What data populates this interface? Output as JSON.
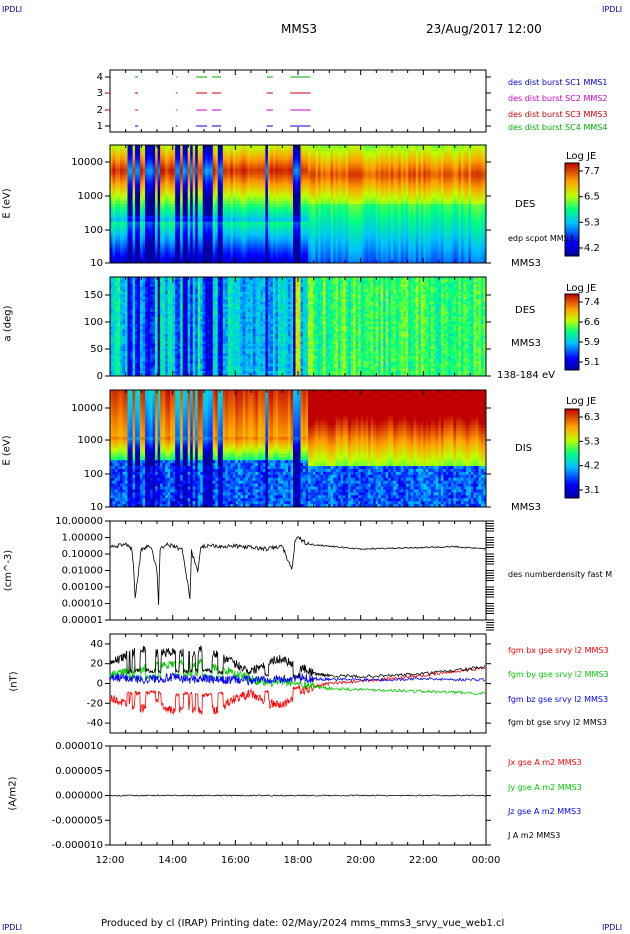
{
  "corner_labels": {
    "top_left": "IPDLI",
    "top_right": "IPDLI",
    "bottom_left": "IPDLI",
    "bottom_right": "IPDLI"
  },
  "header": {
    "spacecraft": "MMS3",
    "datetime": "23/Aug/2017 12:00"
  },
  "footer": {
    "text": "Produced by cl (IRAP)   Printing date: 02/May/2024   mms_mms3_srvy_vue_web1.cl"
  },
  "time_axis": {
    "labels": [
      "12:00",
      "14:00",
      "16:00",
      "18:00",
      "20:00",
      "22:00",
      "00:00"
    ]
  },
  "colors": {
    "red": "#ff0000",
    "green": "#00cc00",
    "blue": "#0000ff",
    "black": "#000000",
    "magenta": "#cc00cc"
  },
  "panels": {
    "burst": {
      "ticks": [
        "4",
        "3",
        "2",
        "1"
      ],
      "legend": [
        {
          "text": "des dist burst SC1 MMS1",
          "color": "#0000cc"
        },
        {
          "text": "des dist burst SC2 MMS2",
          "color": "#cc00cc"
        },
        {
          "text": "des dist burst SC3 MMS3",
          "color": "#cc0000"
        },
        {
          "text": "des dist burst SC4 MMS4",
          "color": "#00aa00"
        }
      ]
    },
    "des_energy": {
      "ylabel": "E (eV)",
      "ticks": [
        "10000",
        "1000",
        "100",
        "10"
      ],
      "label": "DES",
      "sc": "MMS3",
      "extra": "edp scpot MMS3",
      "cbar_title": "Log JE",
      "cbar_ticks": [
        "7.7",
        "6.5",
        "5.3",
        "4.2"
      ]
    },
    "des_pitch": {
      "ylabel": "a (deg)",
      "ticks": [
        "150",
        "100",
        "50",
        "0"
      ],
      "label": "DES",
      "sc": "MMS3",
      "energy_range": "138-184 eV",
      "cbar_title": "Log JE",
      "cbar_ticks": [
        "7.4",
        "6.6",
        "5.9",
        "5.1"
      ]
    },
    "dis_energy": {
      "ylabel": "E (eV)",
      "ticks": [
        "10000",
        "1000",
        "100",
        "10"
      ],
      "label": "DIS",
      "sc": "MMS3",
      "cbar_title": "Log JE",
      "cbar_ticks": [
        "6.3",
        "5.3",
        "4.2",
        "3.1"
      ]
    },
    "density": {
      "ylabel": "(cm^-3)",
      "ticks": [
        "10.00000",
        "1.00000",
        "0.10000",
        "0.01000",
        "0.00100",
        "0.00010",
        "0.00001"
      ],
      "legend": "des numberdensity fast M"
    },
    "bfield": {
      "ylabel": "(nT)",
      "ticks": [
        "40",
        "20",
        "0",
        "-20",
        "-40"
      ],
      "legend": [
        {
          "text": "fgm bx gse srvy l2 MMS3",
          "color": "#ff0000"
        },
        {
          "text": "fgm by gse srvy l2 MMS3",
          "color": "#00cc00"
        },
        {
          "text": "fgm bz gse srvy l2 MMS3",
          "color": "#0000ff"
        },
        {
          "text": "fgm bt gse srvy l2 MMS3",
          "color": "#000000"
        }
      ]
    },
    "current": {
      "ylabel": "(A/m2)",
      "ticks": [
        "0.000010",
        "0.000005",
        "0.000000",
        "-0.000005",
        "-0.000010"
      ],
      "legend": [
        {
          "text": "Jx gse A m2 MMS3",
          "color": "#ff0000"
        },
        {
          "text": "Jy gse A m2 MMS3",
          "color": "#00cc00"
        },
        {
          "text": "Jz gse A m2 MMS3",
          "color": "#0000ff"
        },
        {
          "text": "J A m2 MMS3",
          "color": "#000000"
        }
      ]
    }
  },
  "chart_data": [
    {
      "type": "scatter",
      "title": "",
      "ylabel": "",
      "ylim": [
        0.5,
        4.5
      ],
      "series": [
        {
          "name": "des dist burst SC1 MMS1",
          "y": 1,
          "intervals": [
            [
              12.8,
              12.9
            ],
            [
              14.1,
              14.15
            ],
            [
              14.75,
              15.1
            ],
            [
              15.25,
              15.55
            ],
            [
              17.0,
              17.2
            ],
            [
              17.75,
              18.4
            ]
          ]
        },
        {
          "name": "des dist burst SC2 MMS2",
          "y": 2,
          "intervals": [
            [
              12.8,
              12.9
            ],
            [
              14.1,
              14.15
            ],
            [
              14.75,
              15.1
            ],
            [
              15.25,
              15.55
            ],
            [
              17.0,
              17.2
            ],
            [
              17.75,
              18.4
            ]
          ]
        },
        {
          "name": "des dist burst SC3 MMS3",
          "y": 3,
          "intervals": [
            [
              12.8,
              12.9
            ],
            [
              14.1,
              14.15
            ],
            [
              14.75,
              15.1
            ],
            [
              15.25,
              15.55
            ],
            [
              17.0,
              17.2
            ],
            [
              17.75,
              18.4
            ]
          ]
        },
        {
          "name": "des dist burst SC4 MMS4",
          "y": 4,
          "intervals": [
            [
              12.8,
              12.9
            ],
            [
              14.1,
              14.15
            ],
            [
              14.75,
              15.1
            ],
            [
              15.25,
              15.55
            ],
            [
              17.0,
              17.2
            ],
            [
              17.75,
              18.4
            ]
          ]
        }
      ]
    },
    {
      "type": "heatmap",
      "ylabel": "E (eV)",
      "ylim": [
        10,
        30000
      ],
      "log_y": true,
      "colorbar": {
        "title": "Log JE",
        "range": [
          4.2,
          7.7
        ]
      }
    },
    {
      "type": "heatmap",
      "ylabel": "a (deg)",
      "ylim": [
        0,
        180
      ],
      "colorbar": {
        "title": "Log JE",
        "range": [
          5.1,
          7.4
        ]
      }
    },
    {
      "type": "heatmap",
      "ylabel": "E (eV)",
      "ylim": [
        10,
        30000
      ],
      "log_y": true,
      "colorbar": {
        "title": "Log JE",
        "range": [
          3.1,
          6.3
        ]
      }
    },
    {
      "type": "line",
      "ylabel": "(cm^-3)",
      "ylim": [
        1e-05,
        10
      ],
      "log_y": true,
      "series": [
        {
          "name": "des numberdensity fast M",
          "x": [
            12.0,
            12.5,
            12.7,
            12.75,
            12.8,
            13.0,
            13.3,
            13.5,
            13.55,
            13.6,
            13.8,
            14.0,
            14.3,
            14.5,
            14.55,
            14.6,
            14.8,
            14.9,
            15.0,
            15.2,
            15.5,
            16.0,
            16.5,
            17.0,
            17.5,
            17.8,
            17.9,
            18.0,
            18.3,
            19.0,
            20.0,
            21.0,
            22.0,
            23.0,
            24.0
          ],
          "y": [
            0.3,
            0.35,
            0.2,
            0.02,
            0.0002,
            0.2,
            0.3,
            0.01,
            0.0001,
            0.2,
            0.4,
            0.3,
            0.2,
            0.001,
            0.0002,
            0.15,
            0.01,
            0.2,
            0.3,
            0.35,
            0.3,
            0.3,
            0.25,
            0.2,
            0.3,
            0.01,
            0.5,
            1.0,
            0.4,
            0.3,
            0.2,
            0.22,
            0.25,
            0.28,
            0.2
          ]
        }
      ]
    },
    {
      "type": "line",
      "ylabel": "(nT)",
      "ylim": [
        -50,
        50
      ],
      "series": [
        {
          "name": "fgm bx gse srvy l2 MMS3",
          "x": [
            12,
            12.5,
            13.0,
            13.5,
            14.0,
            14.5,
            15.0,
            15.5,
            16.0,
            16.5,
            17.0,
            17.5,
            18.0,
            18.5,
            19.0,
            20.0,
            21.0,
            22.0,
            23.0,
            24.0
          ],
          "y": [
            -15,
            -20,
            -25,
            -20,
            -28,
            -25,
            -30,
            -25,
            -15,
            -10,
            -20,
            -22,
            -10,
            -3,
            0,
            2,
            5,
            8,
            12,
            16
          ]
        },
        {
          "name": "fgm by gse srvy l2 MMS3",
          "x": [
            12,
            12.5,
            13.0,
            13.5,
            14.0,
            14.5,
            15.0,
            15.5,
            16.0,
            16.5,
            17.0,
            17.5,
            18.0,
            18.5,
            19.0,
            20.0,
            21.0,
            22.0,
            23.0,
            24.0
          ],
          "y": [
            10,
            12,
            15,
            18,
            20,
            22,
            20,
            15,
            10,
            5,
            0,
            2,
            0,
            -3,
            -5,
            -6,
            -7,
            -8,
            -9,
            -10
          ]
        },
        {
          "name": "fgm bz gse srvy l2 MMS3",
          "x": [
            12,
            12.5,
            13.0,
            13.5,
            14.0,
            14.5,
            15.0,
            15.5,
            16.0,
            16.5,
            17.0,
            17.5,
            18.0,
            18.5,
            19.0,
            20.0,
            21.0,
            22.0,
            23.0,
            24.0
          ],
          "y": [
            5,
            6,
            4,
            5,
            6,
            4,
            5,
            3,
            4,
            3,
            5,
            4,
            6,
            5,
            4,
            4,
            4,
            5,
            4,
            4
          ]
        },
        {
          "name": "fgm bt gse srvy l2 MMS3",
          "x": [
            12,
            12.5,
            13.0,
            13.5,
            14.0,
            14.5,
            15.0,
            15.5,
            16.0,
            16.5,
            17.0,
            17.5,
            18.0,
            18.5,
            19.0,
            20.0,
            21.0,
            22.0,
            23.0,
            24.0
          ],
          "y": [
            20,
            28,
            35,
            30,
            32,
            30,
            35,
            28,
            20,
            12,
            22,
            25,
            18,
            10,
            8,
            7,
            8,
            10,
            13,
            17
          ]
        }
      ]
    },
    {
      "type": "line",
      "ylabel": "(A/m2)",
      "ylim": [
        -1e-05,
        1e-05
      ],
      "series": [
        {
          "name": "J A m2 MMS3",
          "x": [
            12,
            14,
            16,
            18,
            20,
            22,
            24
          ],
          "y": [
            0,
            0,
            0,
            0,
            0,
            0,
            0
          ]
        }
      ]
    }
  ]
}
